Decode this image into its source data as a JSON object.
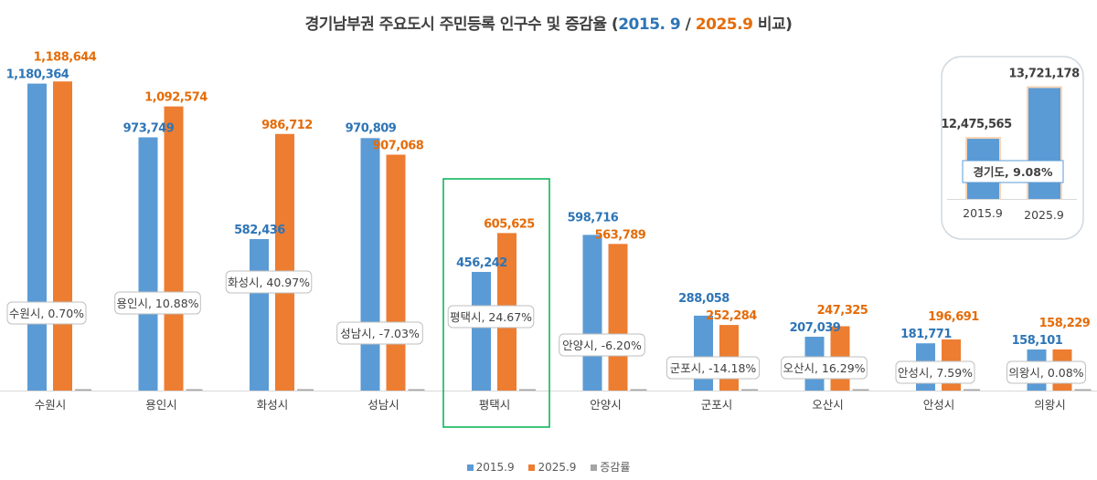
{
  "chart_data": {
    "type": "bar",
    "title": {
      "prefix": "경기남부권 주요도시 주민등록 인구수  및 증감율 (",
      "y1": "2015. 9",
      "sep": " / ",
      "y2": "2025.9",
      "suffix": " 비교)"
    },
    "categories": [
      "수원시",
      "용인시",
      "화성시",
      "성남시",
      "평택시",
      "안양시",
      "군포시",
      "오산시",
      "안성시",
      "의왕시"
    ],
    "series": [
      {
        "name": "2015.9",
        "color": "#5b9bd5",
        "values": [
          1180364,
          973749,
          582436,
          970809,
          456242,
          598716,
          288058,
          207039,
          181771,
          158101
        ]
      },
      {
        "name": "2025.9",
        "color": "#ed7d31",
        "values": [
          1188644,
          1092574,
          986712,
          907068,
          605625,
          563789,
          252284,
          247325,
          196691,
          158229
        ]
      },
      {
        "name": "증감률",
        "color": "#a5a5a5",
        "values": [
          0.7,
          10.88,
          40.97,
          -7.03,
          24.67,
          -6.2,
          -14.18,
          16.29,
          7.59,
          0.08
        ]
      }
    ],
    "value_labels_2015": [
      "1,180,364",
      "973,749",
      "582,436",
      "970,809",
      "456,242",
      "598,716",
      "288,058",
      "207,039",
      "181,771",
      "158,101"
    ],
    "value_labels_2025": [
      "1,188,644",
      "1,092,574",
      "986,712",
      "907,068",
      "605,625",
      "563,789",
      "252,284",
      "247,325",
      "196,691",
      "158,229"
    ],
    "rate_labels": [
      "수원시, 0.70%",
      "용인시, 10.88%",
      "화성시, 40.97%",
      "성남시, -7.03%",
      "평택시, 24.67%",
      "안양시, -6.20%",
      "군포시, -14.18%",
      "오산시, 16.29%",
      "안성시, 7.59%",
      "의왕시, 0.08%"
    ],
    "ylim": [
      0,
      1200000
    ],
    "grid": false,
    "legend": "bottom",
    "highlight": "평택시",
    "highlight_color": "#00b050",
    "inset": {
      "categories": [
        "2015.9",
        "2025.9"
      ],
      "values": [
        12475565,
        13721178
      ],
      "value_labels": [
        "12,475,565",
        "13,721,178"
      ],
      "label": "경기도, 9.08%"
    }
  }
}
